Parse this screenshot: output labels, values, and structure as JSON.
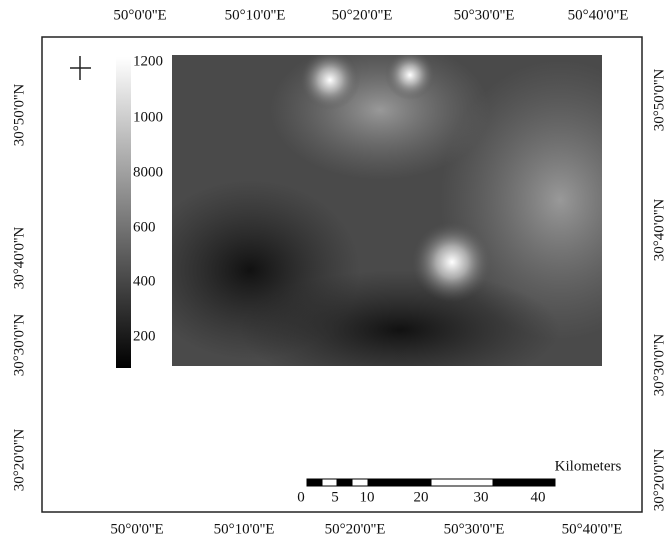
{
  "map": {
    "top_labels": [
      "50°0'0''E",
      "50°10'0''E",
      "50°20'0''E",
      "50°30'0''E",
      "50°40'0''E"
    ],
    "bottom_labels": [
      "50°0'0''E",
      "50°10'0''E",
      "50°20'0''E",
      "50°30'0''E",
      "50°40'0''E"
    ],
    "left_labels": [
      "30°50'0''N",
      "30°40'0''N",
      "30°30'0''N",
      "30°20'0''N"
    ],
    "right_labels": [
      "30°50'0''N",
      "30°40'0''N",
      "30°30'0''N",
      "30°20'0''N"
    ],
    "legend_labels": [
      "1200",
      "1000",
      "8000",
      "600",
      "400",
      "200"
    ],
    "scale_bar": {
      "unit": "Kilometers",
      "labels": [
        "0",
        "5",
        "10",
        "20",
        "30",
        "40"
      ]
    }
  }
}
